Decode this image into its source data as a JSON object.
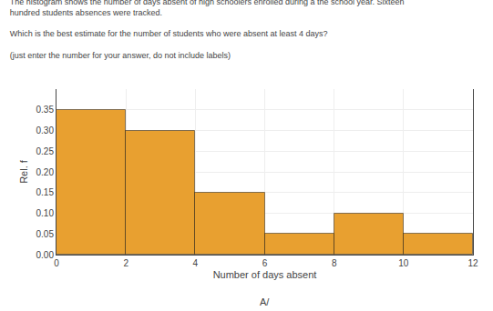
{
  "chart_data": {
    "type": "histogram",
    "title": "The histogram shows the number of days absent of high schoolers enrolled during a the school year. Sixteen\nhundred students absences were tracked.\n\nWhich is the best estimate for the number of students who were absent at least 4 days?\n\n(just enter the number for your answer, do not include labels)",
    "xlabel": "Number of days absent",
    "ylabel": "Rel. f",
    "annotations": [
      "A/"
    ],
    "bins": [
      0,
      2,
      4,
      6,
      8,
      10,
      12
    ],
    "values": [
      0.35,
      0.3,
      0.15,
      0.05,
      0.1,
      0.05
    ],
    "color": "#E8A030",
    "xlim": [
      0,
      12
    ],
    "ylim": [
      0,
      0.4
    ],
    "xticks": [
      0,
      2,
      4,
      6,
      8,
      10,
      12
    ],
    "yticks": [
      {
        "value": 0,
        "label": "0.00"
      },
      0.05,
      {
        "value": 0.1,
        "label": "0.10"
      },
      0.15,
      {
        "value": 0.2,
        "label": "0.20"
      },
      0.25,
      {
        "value": 0.3,
        "label": "0.30"
      },
      0.35
    ],
    "grid": true
  }
}
